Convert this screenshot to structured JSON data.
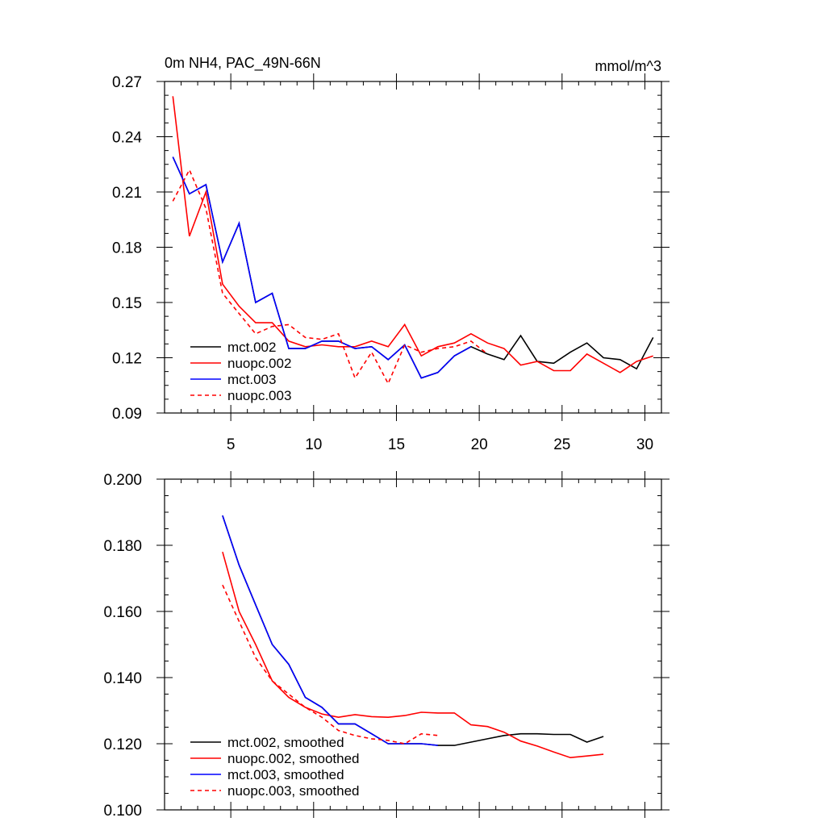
{
  "chart_data": [
    {
      "type": "line",
      "title": "0m NH4, PAC_49N-66N",
      "units": "mmol/m^3",
      "xlabel": "",
      "ylabel": "",
      "xlim": [
        1,
        31
      ],
      "ylim": [
        0.09,
        0.27
      ],
      "xticks": [
        5,
        10,
        15,
        20,
        25,
        30
      ],
      "yticks": [
        0.09,
        0.12,
        0.15,
        0.18,
        0.21,
        0.24,
        0.27
      ],
      "ytick_labels": [
        "0.09",
        "0.12",
        "0.15",
        "0.18",
        "0.21",
        "0.24",
        "0.27"
      ],
      "legend_position": "bottom-left",
      "series": [
        {
          "name": "mct.002",
          "color": "#000000",
          "dash": "solid",
          "x": [
            1.5,
            2.5,
            3.5,
            4.5,
            5.5,
            6.5,
            7.5,
            8.5,
            9.5,
            10.5,
            11.5,
            12.5,
            13.5,
            14.5,
            15.5,
            16.5,
            17.5,
            18.5,
            19.5,
            20.5,
            21.5,
            22.5,
            23.5,
            24.5,
            25.5,
            26.5,
            27.5,
            28.5,
            29.5,
            30.5
          ],
          "y": [
            0.229,
            0.209,
            0.214,
            0.172,
            0.193,
            0.15,
            0.155,
            0.125,
            0.125,
            0.129,
            0.129,
            0.125,
            0.126,
            0.119,
            0.127,
            0.109,
            0.112,
            0.121,
            0.126,
            0.122,
            0.119,
            0.132,
            0.118,
            0.117,
            0.123,
            0.128,
            0.12,
            0.119,
            0.114,
            0.131
          ]
        },
        {
          "name": "nuopc.002",
          "color": "#ff0000",
          "dash": "solid",
          "x": [
            1.5,
            2.5,
            3.5,
            4.5,
            5.5,
            6.5,
            7.5,
            8.5,
            9.5,
            10.5,
            11.5,
            12.5,
            13.5,
            14.5,
            15.5,
            16.5,
            17.5,
            18.5,
            19.5,
            20.5,
            21.5,
            22.5,
            23.5,
            24.5,
            25.5,
            26.5,
            27.5,
            28.5,
            29.5,
            30.5
          ],
          "y": [
            0.262,
            0.186,
            0.21,
            0.16,
            0.148,
            0.139,
            0.139,
            0.129,
            0.126,
            0.127,
            0.126,
            0.126,
            0.129,
            0.126,
            0.138,
            0.121,
            0.126,
            0.128,
            0.133,
            0.128,
            0.125,
            0.116,
            0.118,
            0.113,
            0.113,
            0.122,
            0.117,
            0.112,
            0.118,
            0.121
          ]
        },
        {
          "name": "mct.003",
          "color": "#0000ff",
          "dash": "solid",
          "x": [
            1.5,
            2.5,
            3.5,
            4.5,
            5.5,
            6.5,
            7.5,
            8.5,
            9.5,
            10.5,
            11.5,
            12.5,
            13.5,
            14.5,
            15.5,
            16.5,
            17.5,
            18.5,
            19.5
          ],
          "y": [
            0.229,
            0.209,
            0.214,
            0.172,
            0.193,
            0.15,
            0.155,
            0.125,
            0.125,
            0.129,
            0.129,
            0.125,
            0.126,
            0.119,
            0.127,
            0.109,
            0.112,
            0.121,
            0.126
          ]
        },
        {
          "name": "nuopc.003",
          "color": "#ff0000",
          "dash": "dashed",
          "x": [
            1.5,
            2.5,
            3.5,
            4.5,
            5.5,
            6.5,
            7.5,
            8.5,
            9.5,
            10.5,
            11.5,
            12.5,
            13.5,
            14.5,
            15.5,
            16.5,
            17.5,
            18.5,
            19.5,
            20.5
          ],
          "y": [
            0.205,
            0.222,
            0.201,
            0.155,
            0.144,
            0.133,
            0.137,
            0.138,
            0.131,
            0.13,
            0.133,
            0.109,
            0.123,
            0.106,
            0.127,
            0.123,
            0.125,
            0.126,
            0.129,
            0.122
          ]
        }
      ]
    },
    {
      "type": "line",
      "title": "",
      "xlabel": "",
      "ylabel": "",
      "xlim": [
        1,
        31
      ],
      "ylim": [
        0.1,
        0.2
      ],
      "xticks": [
        5,
        10,
        15,
        20,
        25,
        30
      ],
      "yticks": [
        0.1,
        0.12,
        0.14,
        0.16,
        0.18,
        0.2
      ],
      "ytick_labels": [
        "0.100",
        "0.120",
        "0.140",
        "0.160",
        "0.180",
        "0.200"
      ],
      "legend_position": "bottom-left",
      "series": [
        {
          "name": "mct.002, smoothed",
          "color": "#000000",
          "dash": "solid",
          "x": [
            4.5,
            5.5,
            6.5,
            7.5,
            8.5,
            9.5,
            10.5,
            11.5,
            12.5,
            13.5,
            14.5,
            15.5,
            16.5,
            17.5,
            18.5,
            19.5,
            20.5,
            21.5,
            22.5,
            23.5,
            24.5,
            25.5,
            26.5,
            27.5
          ],
          "y": [
            0.189,
            0.174,
            0.162,
            0.15,
            0.144,
            0.134,
            0.131,
            0.126,
            0.126,
            0.123,
            0.12,
            0.12,
            0.12,
            0.1195,
            0.1195,
            0.1205,
            0.1215,
            0.1225,
            0.123,
            0.123,
            0.1228,
            0.1228,
            0.1205,
            0.1222
          ]
        },
        {
          "name": "nuopc.002, smoothed",
          "color": "#ff0000",
          "dash": "solid",
          "x": [
            4.5,
            5.5,
            6.5,
            7.5,
            8.5,
            9.5,
            10.5,
            11.5,
            12.5,
            13.5,
            14.5,
            15.5,
            16.5,
            17.5,
            18.5,
            19.5,
            20.5,
            21.5,
            22.5,
            23.5,
            24.5,
            25.5,
            26.5,
            27.5
          ],
          "y": [
            0.178,
            0.16,
            0.15,
            0.139,
            0.134,
            0.131,
            0.129,
            0.128,
            0.1288,
            0.1282,
            0.128,
            0.1285,
            0.1295,
            0.1293,
            0.1293,
            0.1257,
            0.1252,
            0.1235,
            0.1208,
            0.1193,
            0.1175,
            0.1158,
            0.1163,
            0.1168
          ]
        },
        {
          "name": "mct.003, smoothed",
          "color": "#0000ff",
          "dash": "solid",
          "x": [
            4.5,
            5.5,
            6.5,
            7.5,
            8.5,
            9.5,
            10.5,
            11.5,
            12.5,
            13.5,
            14.5,
            15.5,
            16.5,
            17.5
          ],
          "y": [
            0.189,
            0.174,
            0.162,
            0.15,
            0.144,
            0.134,
            0.131,
            0.126,
            0.126,
            0.123,
            0.12,
            0.12,
            0.12,
            0.1195
          ]
        },
        {
          "name": "nuopc.003, smoothed",
          "color": "#ff0000",
          "dash": "dashed",
          "x": [
            4.5,
            5.5,
            6.5,
            7.5,
            8.5,
            9.5,
            10.5,
            11.5,
            12.5,
            13.5,
            14.5,
            15.5,
            16.5,
            17.5
          ],
          "y": [
            0.168,
            0.157,
            0.146,
            0.139,
            0.135,
            0.131,
            0.128,
            0.124,
            0.1225,
            0.1215,
            0.121,
            0.12,
            0.123,
            0.1225
          ]
        }
      ]
    }
  ]
}
